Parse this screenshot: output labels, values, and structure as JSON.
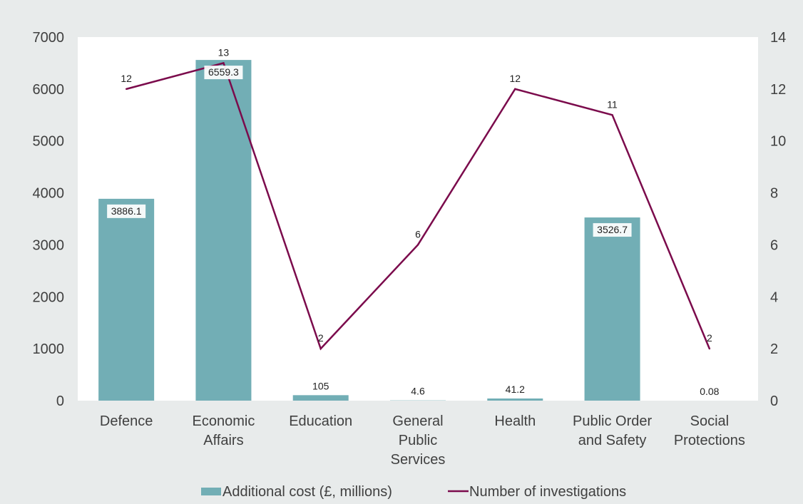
{
  "chart_data": {
    "type": "bar",
    "categories": [
      [
        "Defence"
      ],
      [
        "Economic",
        "Affairs"
      ],
      [
        "Education"
      ],
      [
        "General",
        "Public",
        "Services"
      ],
      [
        "Health"
      ],
      [
        "Public Order",
        "and Safety"
      ],
      [
        "Social",
        "Protections"
      ]
    ],
    "y_left": {
      "min": 0,
      "max": 7000,
      "ticks": [
        "0",
        "1000",
        "2000",
        "3000",
        "4000",
        "5000",
        "6000",
        "7000"
      ]
    },
    "y_right": {
      "min": 0,
      "max": 14,
      "ticks": [
        "0",
        "2",
        "4",
        "6",
        "8",
        "10",
        "12",
        "14"
      ]
    },
    "grid": false,
    "legend_position": "bottom",
    "series": [
      {
        "name": "Additional cost (£, millions)",
        "type": "bar",
        "axis": "left",
        "color": "#72aeb5",
        "values": [
          3886.1,
          6559.3,
          105,
          4.6,
          41.2,
          3526.7,
          0.08
        ],
        "labels": [
          "3886.1",
          "6559.3",
          "105",
          "4.6",
          "41.2",
          "3526.7",
          "0.08"
        ]
      },
      {
        "name": "Number of investigations",
        "type": "line",
        "axis": "right",
        "color": "#7b0b4c",
        "values": [
          12,
          13,
          2,
          6,
          12,
          11,
          2
        ],
        "labels": [
          "12",
          "13",
          "2",
          "6",
          "12",
          "11",
          "2"
        ]
      }
    ]
  }
}
